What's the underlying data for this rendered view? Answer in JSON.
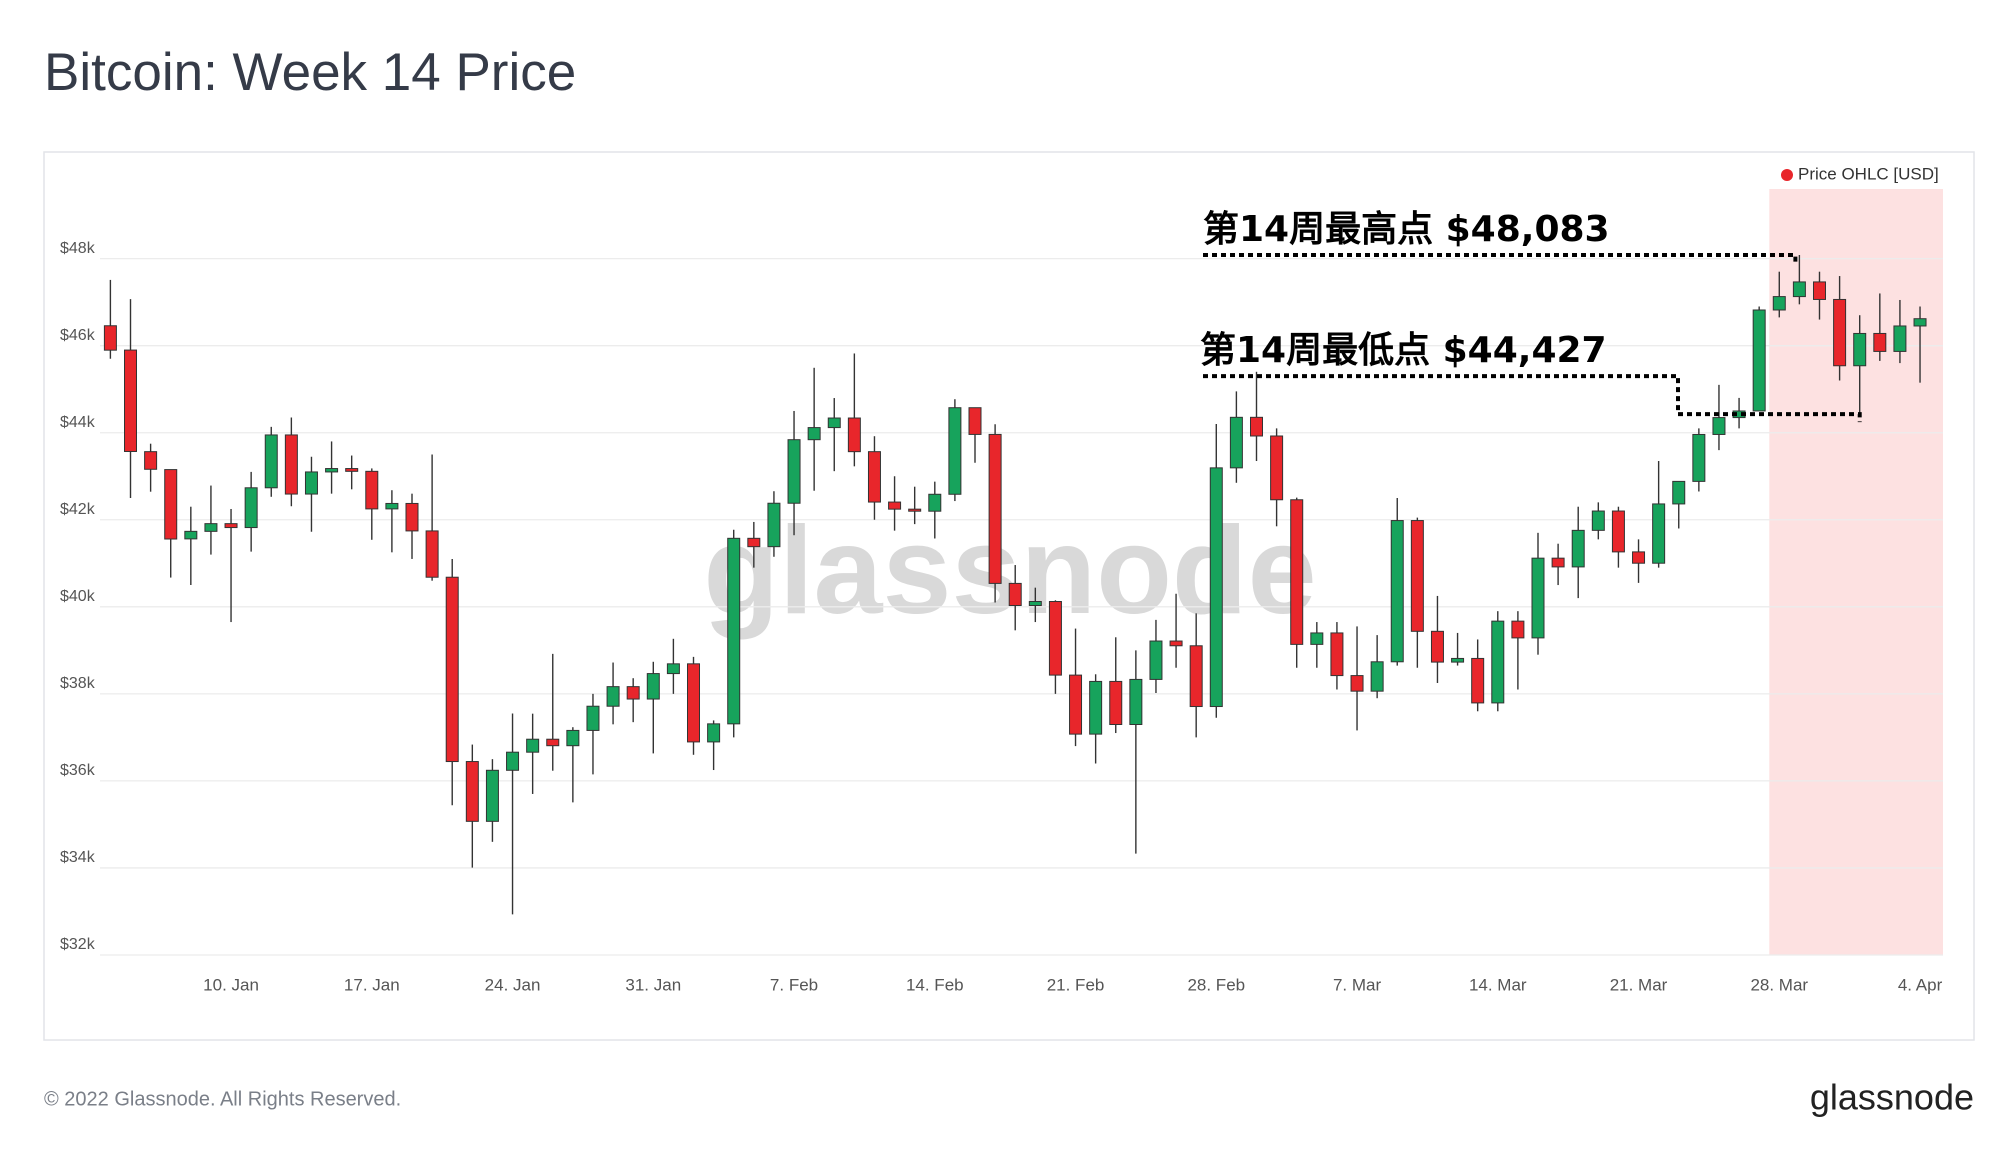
{
  "chart_data": {
    "type": "candlestick",
    "title": "Bitcoin: Week 14 Price",
    "x": [
      "4. Jan",
      "5. Jan",
      "6. Jan",
      "7. Jan",
      "8. Jan",
      "9. Jan",
      "10. Jan",
      "11. Jan",
      "12. Jan",
      "13. Jan",
      "14. Jan",
      "15. Jan",
      "16. Jan",
      "17. Jan",
      "18. Jan",
      "19. Jan",
      "20. Jan",
      "21. Jan",
      "22. Jan",
      "23. Jan",
      "24. Jan",
      "25. Jan",
      "26. Jan",
      "27. Jan",
      "28. Jan",
      "29. Jan",
      "30. Jan",
      "31. Jan",
      "1. Feb",
      "2. Feb",
      "3. Feb",
      "4. Feb",
      "5. Feb",
      "6. Feb",
      "7. Feb",
      "8. Feb",
      "9. Feb",
      "10. Feb",
      "11. Feb",
      "12. Feb",
      "13. Feb",
      "14. Feb",
      "15. Feb",
      "16. Feb",
      "17. Feb",
      "18. Feb",
      "19. Feb",
      "20. Feb",
      "21. Feb",
      "22. Feb",
      "23. Feb",
      "24. Feb",
      "25. Feb",
      "26. Feb",
      "27. Feb",
      "28. Feb",
      "1. Mar",
      "2. Mar",
      "3. Mar",
      "4. Mar",
      "5. Mar",
      "6. Mar",
      "7. Mar",
      "8. Mar",
      "9. Mar",
      "10. Mar",
      "11. Mar",
      "12. Mar",
      "13. Mar",
      "14. Mar",
      "15. Mar",
      "16. Mar",
      "17. Mar",
      "18. Mar",
      "19. Mar",
      "20. Mar",
      "21. Mar",
      "22. Mar",
      "23. Mar",
      "24. Mar",
      "25. Mar",
      "26. Mar",
      "27. Mar",
      "28. Mar",
      "29. Mar",
      "30. Mar",
      "31. Mar",
      "1. Apr",
      "2. Apr",
      "3. Apr",
      "4. Apr"
    ],
    "series": [
      {
        "name": "Price OHLC [USD]",
        "color": "#e8262b",
        "up_color": "#17a35c",
        "down_color": "#e8262b",
        "open": [
          46458,
          45899,
          43565,
          43153,
          41561,
          41734,
          41911,
          41821,
          42735,
          43949,
          42591,
          43099,
          43177,
          43113,
          42250,
          42375,
          41744,
          40680,
          36445,
          35071,
          36244,
          36660,
          36958,
          36809,
          37160,
          37716,
          38166,
          37881,
          38466,
          38690,
          36896,
          37311,
          41574,
          41382,
          42380,
          43840,
          44118,
          44338,
          43565,
          42407,
          42244,
          42197,
          42586,
          44575,
          43961,
          40538,
          40030,
          40122,
          38431,
          37075,
          38286,
          37296,
          38332,
          39214,
          39105,
          37709,
          43193,
          44354,
          43925,
          42460,
          39137,
          39400,
          38420,
          38062,
          38737,
          41982,
          39437,
          38730,
          38814,
          37792,
          39671,
          39286,
          41118,
          40917,
          41757,
          42201,
          41262,
          41002,
          42364,
          42882,
          43960,
          44348,
          44500,
          46820,
          47128,
          47465,
          47062,
          45539,
          46281,
          45868,
          46453
        ],
        "high": [
          47511,
          47070,
          43748,
          43153,
          42300,
          42786,
          42248,
          43100,
          44135,
          44350,
          43448,
          43800,
          43476,
          43180,
          42679,
          42600,
          43500,
          41100,
          36835,
          36500,
          37550,
          37545,
          38919,
          37234,
          38000,
          38720,
          38360,
          38737,
          39265,
          38850,
          37390,
          41772,
          41950,
          42656,
          44500,
          45492,
          44797,
          45821,
          43920,
          43000,
          42760,
          42876,
          44770,
          44580,
          44196,
          40960,
          40440,
          40150,
          39500,
          38450,
          39300,
          39000,
          39700,
          40300,
          39850,
          44200,
          44950,
          45400,
          44100,
          42510,
          39650,
          39650,
          39550,
          39350,
          42500,
          42050,
          40250,
          39400,
          39250,
          39900,
          39900,
          41700,
          41450,
          42300,
          42400,
          42300,
          41550,
          43350,
          42850,
          44100,
          45100,
          44800,
          46900,
          47700,
          48083,
          47700,
          47600,
          46700,
          47200,
          47050,
          46900
        ],
        "low": [
          45700,
          42500,
          42645,
          40672,
          40501,
          41200,
          39650,
          41268,
          42528,
          42311,
          41725,
          42600,
          42700,
          41540,
          41252,
          41100,
          40600,
          35440,
          34008,
          34600,
          32933,
          35700,
          36234,
          35507,
          36150,
          37300,
          37350,
          36632,
          38000,
          36600,
          36250,
          37000,
          40900,
          41150,
          41645,
          42667,
          43117,
          43228,
          42000,
          41750,
          41900,
          41570,
          42430,
          43310,
          40100,
          39460,
          39650,
          38000,
          36800,
          36400,
          37100,
          34330,
          38020,
          38600,
          37000,
          37450,
          42850,
          43350,
          41850,
          38600,
          38600,
          38100,
          37160,
          37900,
          38650,
          38600,
          38250,
          38650,
          37600,
          37600,
          38100,
          38900,
          40500,
          40200,
          41550,
          40900,
          40550,
          40900,
          41800,
          42650,
          43600,
          44100,
          44500,
          46650,
          46950,
          46600,
          45200,
          44427,
          45650,
          45600,
          45150
        ],
        "close": [
          45897,
          43569,
          43160,
          41558,
          41734,
          41911,
          41821,
          42735,
          43949,
          42591,
          43099,
          43177,
          43113,
          42250,
          42375,
          41744,
          40680,
          36445,
          35071,
          36244,
          36660,
          36958,
          36809,
          37160,
          37716,
          38166,
          37881,
          38466,
          38690,
          36896,
          37311,
          41574,
          41382,
          42380,
          43840,
          44118,
          44338,
          43565,
          42407,
          42244,
          42197,
          42586,
          44575,
          43961,
          40538,
          40030,
          40122,
          38431,
          37075,
          38286,
          37296,
          38332,
          39214,
          39105,
          37709,
          43193,
          44354,
          43925,
          42460,
          39137,
          39400,
          38420,
          38062,
          38737,
          41982,
          39437,
          38730,
          38814,
          37792,
          39671,
          39286,
          41118,
          40917,
          41757,
          42201,
          41262,
          41002,
          42364,
          42882,
          43960,
          44348,
          44500,
          46820,
          47128,
          47465,
          47062,
          45539,
          46281,
          45868,
          46453,
          46620
        ]
      }
    ],
    "ylim": [
      32000,
      49600
    ],
    "yticks": [
      {
        "value": 32000,
        "label": "$32k"
      },
      {
        "value": 34000,
        "label": "$34k"
      },
      {
        "value": 36000,
        "label": "$36k"
      },
      {
        "value": 38000,
        "label": "$38k"
      },
      {
        "value": 40000,
        "label": "$40k"
      },
      {
        "value": 42000,
        "label": "$42k"
      },
      {
        "value": 44000,
        "label": "$44k"
      },
      {
        "value": 46000,
        "label": "$46k"
      },
      {
        "value": 48000,
        "label": "$48k"
      }
    ],
    "xticks": [
      "10. Jan",
      "17. Jan",
      "24. Jan",
      "31. Jan",
      "7. Feb",
      "14. Feb",
      "21. Feb",
      "28. Feb",
      "7. Mar",
      "14. Mar",
      "21. Mar",
      "28. Mar",
      "4. Apr"
    ],
    "grid": true,
    "legend": "top-right",
    "highlight": {
      "from": "28. Mar",
      "to": "4. Apr",
      "color": "#fde1e1"
    },
    "annotations": [
      {
        "text": "第14周最高点 $48,083",
        "value": 48083
      },
      {
        "text": "第14周最低点 $44,427",
        "value": 44427
      }
    ]
  },
  "watermark": "glassnode",
  "footer": {
    "copyright": "© 2022 Glassnode. All Rights Reserved.",
    "logo": "glassnode"
  }
}
